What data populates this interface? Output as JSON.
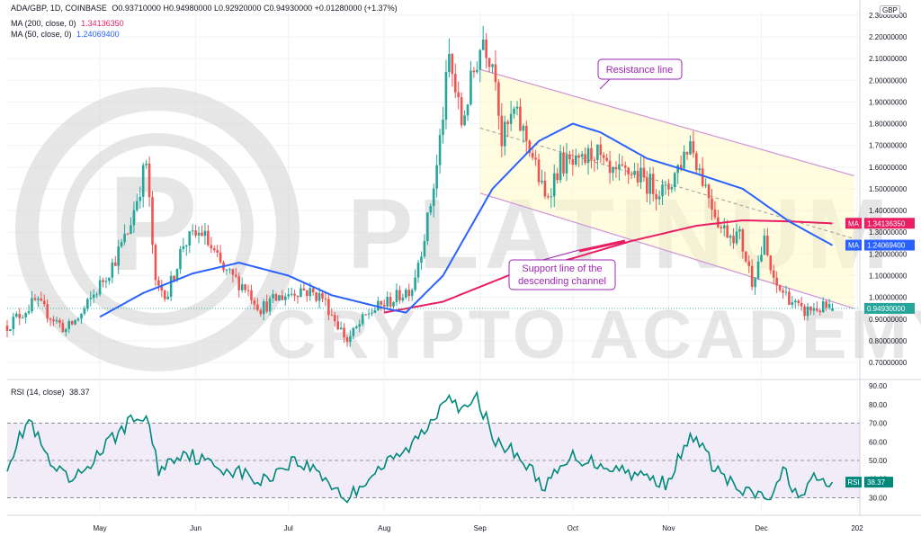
{
  "header": {
    "symbol": "ADA/GBP, 1D, COINBASE",
    "ohlc": "O0.93710000 H0.94980000 L0.92920000 C0.94930000 +0.01280000 (+1.37%)",
    "ma200_label": "MA (200, close, 0)",
    "ma200_value": "1.34136350",
    "ma50_label": "MA (50, close, 0)",
    "ma50_value": "1.24069400",
    "rsi_label": "RSI (14, close)",
    "rsi_value": "38.37",
    "currency": "GBP"
  },
  "colors": {
    "up": "#26a69a",
    "down": "#ef5350",
    "ma50": "#2962ff",
    "ma200": "#e91e63",
    "rsi": "#00897b",
    "annotation": "#9c27b0",
    "channel_fill": "#fff9c4",
    "rsi_band": "#ede7f6",
    "watermark": "#d3d3d3"
  },
  "watermark": {
    "line1": "PLATINUM",
    "line2": "CRYPTO ACADEMY",
    "logo_icon": "platinum-p-logo-icon"
  },
  "annotations": {
    "resistance": "Resistance line",
    "support_line1": "Support line of the",
    "support_line2": "descending channel"
  },
  "chart_data": [
    {
      "type": "candlestick",
      "title": "ADA/GBP, 1D, COINBASE",
      "ylim": [
        0.63,
        2.32
      ],
      "y_ticks": [
        "0.70000000",
        "0.80000000",
        "0.90000000",
        "1.00000000",
        "1.10000000",
        "1.20000000",
        "1.30000000",
        "1.40000000",
        "1.50000000",
        "1.60000000",
        "1.70000000",
        "1.80000000",
        "1.90000000",
        "2.00000000",
        "2.10000000",
        "2.20000000",
        "2.30000000"
      ],
      "x_ticks": [
        "May",
        "Jun",
        "Jul",
        "Aug",
        "Sep",
        "Oct",
        "Nov",
        "Dec",
        "202"
      ],
      "grid": true,
      "last_price": "0.94930000",
      "ma200_tag": "1.34136350",
      "ma50_tag": "1.24069400",
      "ma_tag_label": "MA",
      "anchors": [
        [
          "2021-04-01",
          0.87
        ],
        [
          "2021-04-10",
          0.98
        ],
        [
          "2021-04-20",
          0.85
        ],
        [
          "2021-04-25",
          0.92
        ],
        [
          "2021-05-05",
          1.15
        ],
        [
          "2021-05-10",
          1.3
        ],
        [
          "2021-05-16",
          1.62
        ],
        [
          "2021-05-19",
          1.05
        ],
        [
          "2021-05-23",
          1.02
        ],
        [
          "2021-05-28",
          1.25
        ],
        [
          "2021-06-03",
          1.3
        ],
        [
          "2021-06-10",
          1.12
        ],
        [
          "2021-06-17",
          1.05
        ],
        [
          "2021-06-22",
          0.95
        ],
        [
          "2021-06-28",
          1.0
        ],
        [
          "2021-07-05",
          1.04
        ],
        [
          "2021-07-12",
          1.0
        ],
        [
          "2021-07-20",
          0.8
        ],
        [
          "2021-07-27",
          0.93
        ],
        [
          "2021-08-05",
          1.0
        ],
        [
          "2021-08-10",
          1.05
        ],
        [
          "2021-08-15",
          1.35
        ],
        [
          "2021-08-18",
          1.6
        ],
        [
          "2021-08-22",
          2.1
        ],
        [
          "2021-08-26",
          1.8
        ],
        [
          "2021-08-31",
          2.1
        ],
        [
          "2021-09-02",
          2.2
        ],
        [
          "2021-09-06",
          2.05
        ],
        [
          "2021-09-08",
          1.72
        ],
        [
          "2021-09-12",
          1.85
        ],
        [
          "2021-09-17",
          1.7
        ],
        [
          "2021-09-22",
          1.45
        ],
        [
          "2021-09-27",
          1.62
        ],
        [
          "2021-10-03",
          1.6
        ],
        [
          "2021-10-08",
          1.68
        ],
        [
          "2021-10-13",
          1.55
        ],
        [
          "2021-10-20",
          1.58
        ],
        [
          "2021-10-26",
          1.52
        ],
        [
          "2021-10-31",
          1.48
        ],
        [
          "2021-11-04",
          1.6
        ],
        [
          "2021-11-08",
          1.72
        ],
        [
          "2021-11-12",
          1.55
        ],
        [
          "2021-11-18",
          1.32
        ],
        [
          "2021-11-24",
          1.28
        ],
        [
          "2021-11-28",
          1.08
        ],
        [
          "2021-12-02",
          1.25
        ],
        [
          "2021-12-05",
          1.06
        ],
        [
          "2021-12-10",
          1.0
        ],
        [
          "2021-12-14",
          0.93
        ],
        [
          "2021-12-18",
          0.95
        ],
        [
          "2021-12-24",
          0.95
        ]
      ],
      "ma200": [
        [
          "2021-08-01",
          0.93
        ],
        [
          "2021-08-20",
          0.98
        ],
        [
          "2021-09-10",
          1.1
        ],
        [
          "2021-10-01",
          1.18
        ],
        [
          "2021-10-20",
          1.26
        ],
        [
          "2021-11-10",
          1.33
        ],
        [
          "2021-11-25",
          1.355
        ],
        [
          "2021-12-10",
          1.35
        ],
        [
          "2021-12-24",
          1.341
        ]
      ],
      "ma50": [
        [
          "2021-05-01",
          0.91
        ],
        [
          "2021-05-15",
          1.02
        ],
        [
          "2021-05-31",
          1.11
        ],
        [
          "2021-06-15",
          1.16
        ],
        [
          "2021-07-01",
          1.1
        ],
        [
          "2021-07-15",
          1.01
        ],
        [
          "2021-08-01",
          0.95
        ],
        [
          "2021-08-08",
          0.93
        ],
        [
          "2021-08-20",
          1.1
        ],
        [
          "2021-09-05",
          1.5
        ],
        [
          "2021-09-20",
          1.72
        ],
        [
          "2021-10-01",
          1.8
        ],
        [
          "2021-10-10",
          1.76
        ],
        [
          "2021-10-25",
          1.64
        ],
        [
          "2021-11-10",
          1.57
        ],
        [
          "2021-11-25",
          1.5
        ],
        [
          "2021-12-10",
          1.35
        ],
        [
          "2021-12-24",
          1.24
        ]
      ],
      "resistance_line": [
        [
          "2021-09-01",
          2.05
        ],
        [
          "2021-12-31",
          1.56
        ]
      ],
      "support_line": [
        [
          "2021-09-01",
          1.48
        ],
        [
          "2021-12-24",
          0.98
        ]
      ],
      "midline": [
        [
          "2021-09-01",
          1.78
        ],
        [
          "2021-12-31",
          1.27
        ]
      ]
    },
    {
      "type": "line",
      "title": "RSI (14, close)",
      "ylim": [
        22,
        92
      ],
      "y_ticks": [
        "30.00",
        "40.00",
        "50.00",
        "60.00",
        "70.00",
        "80.00",
        "90.00"
      ],
      "band": [
        30,
        70
      ],
      "last_value": "38.37",
      "tag_label": "RSI",
      "anchors": [
        [
          "2021-04-01",
          48
        ],
        [
          "2021-04-08",
          72
        ],
        [
          "2021-04-15",
          47
        ],
        [
          "2021-04-22",
          38
        ],
        [
          "2021-05-03",
          58
        ],
        [
          "2021-05-10",
          70
        ],
        [
          "2021-05-16",
          74
        ],
        [
          "2021-05-20",
          45
        ],
        [
          "2021-05-28",
          55
        ],
        [
          "2021-06-07",
          47
        ],
        [
          "2021-06-15",
          44
        ],
        [
          "2021-06-22",
          38
        ],
        [
          "2021-07-02",
          50
        ],
        [
          "2021-07-10",
          45
        ],
        [
          "2021-07-20",
          29
        ],
        [
          "2021-07-28",
          43
        ],
        [
          "2021-08-08",
          55
        ],
        [
          "2021-08-15",
          68
        ],
        [
          "2021-08-22",
          88
        ],
        [
          "2021-08-26",
          75
        ],
        [
          "2021-08-31",
          83
        ],
        [
          "2021-09-07",
          58
        ],
        [
          "2021-09-12",
          55
        ],
        [
          "2021-09-22",
          36
        ],
        [
          "2021-10-01",
          52
        ],
        [
          "2021-10-15",
          46
        ],
        [
          "2021-10-31",
          38
        ],
        [
          "2021-11-09",
          64
        ],
        [
          "2021-11-15",
          48
        ],
        [
          "2021-11-24",
          33
        ],
        [
          "2021-12-05",
          30
        ],
        [
          "2021-12-08",
          45
        ],
        [
          "2021-12-14",
          29
        ],
        [
          "2021-12-18",
          40
        ],
        [
          "2021-12-24",
          38.37
        ]
      ]
    }
  ]
}
